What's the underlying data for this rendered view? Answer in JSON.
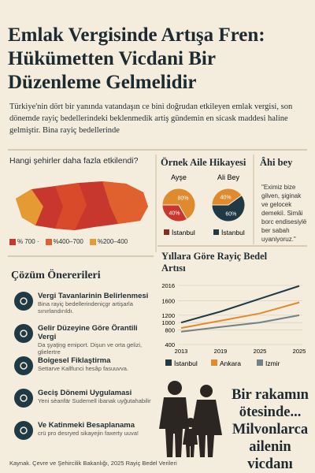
{
  "header": {
    "title_lines": [
      "Emlak Vergisinde Artışa Fren:",
      "Hükümetten Vicdani Bir",
      "Düzenleme Gelmelidir"
    ],
    "intro": "Türkiye'nin dört bir yanında vatandaşın ce bini doğrudan etkileyen emlak vergisi, son dönemde rayiç bedellerindeki beklenmedik artiş gündemin en sicask maddesi haline gelmiştir. Bina rayiç bedellerinde"
  },
  "map": {
    "question": "Hangi şehirler daha fazla etkilendi?",
    "legend": [
      {
        "label": "% 700 ·",
        "color": "#c8372d"
      },
      {
        "label": "%400–700",
        "color": "#e0612e"
      },
      {
        "label": "%200–400",
        "color": "#e59a33"
      }
    ]
  },
  "family": {
    "title": "Örnek Aile Hikayesi",
    "pies": [
      {
        "name": "Ayşe",
        "values": [
          80,
          40
        ],
        "value_labels": [
          "80%",
          "40%"
        ],
        "colors": [
          "#e08a2e",
          "#c8372d"
        ]
      },
      {
        "name": "Ali Bey",
        "values": [
          40,
          60
        ],
        "value_labels": [
          "40%",
          "60%"
        ],
        "colors": [
          "#e08a2e",
          "#1f3a45"
        ]
      }
    ],
    "legend": [
      {
        "label": "İstanbul",
        "color": "#8a2a20"
      },
      {
        "label": "İstanbul",
        "color": "#1f3a45"
      }
    ]
  },
  "quote": {
    "title": "Âhi bey",
    "text": "\"Eximiz bize gilven, şiginak ve gelocek demekiì. Simâi borc endisesiylë ber sabah uyaniyoruz.\""
  },
  "chart_data": {
    "type": "line",
    "title": "Yıllara Göre Rayiç Bedel Artısı",
    "categories": [
      "2013",
      "2019",
      "2025",
      "2025"
    ],
    "series": [
      {
        "name": "İstanbul",
        "color": "#1f3a45",
        "values": [
          1000,
          1300,
          1650,
          2000
        ]
      },
      {
        "name": "Ankara",
        "color": "#e08a2e",
        "values": [
          850,
          1050,
          1250,
          1550
        ]
      },
      {
        "name": "Izmir",
        "color": "#6f8288",
        "values": [
          750,
          880,
          1000,
          1200
        ]
      }
    ],
    "ylim": [
      400,
      2016
    ],
    "yticks": [
      400,
      800,
      1000,
      1200,
      1600,
      2016
    ],
    "grid": true
  },
  "solutions": {
    "title": "Çözüm Önererileri",
    "items": [
      {
        "title": "Vergi Tavanlarinin Belirlenmesi",
        "text": "Bina rayiç bedellerindeniçgr artişarla sınırlandırıldı."
      },
      {
        "title": "Gelir Düzeyine Göre Örantili Vergi",
        "text": "Da şyaţiņg emiport. Dişun ve orta gelizi, glielertre"
      },
      {
        "title": "Boigesel Fiklaştirma",
        "text": "Settarve Kallfunci hesâp fasuuvva."
      },
      {
        "title": "Geciş Dönemi Uygulamasi",
        "text": "Yeni sèanfär Sudemell ibanak uyğutahabilir"
      },
      {
        "title": "Ve Katinmeki Besaplanama",
        "text": "crü pro desryed sikayejin faxerty uuva!"
      }
    ]
  },
  "slogan": [
    "Bir rakamın",
    "ötesinde...",
    "Milvonlarca",
    "ailenin vicdanı"
  ],
  "source": "Kaynak. Çevre ve Şehircilik Bakanlığı, 2025 Rayiç Bedel Verileri"
}
